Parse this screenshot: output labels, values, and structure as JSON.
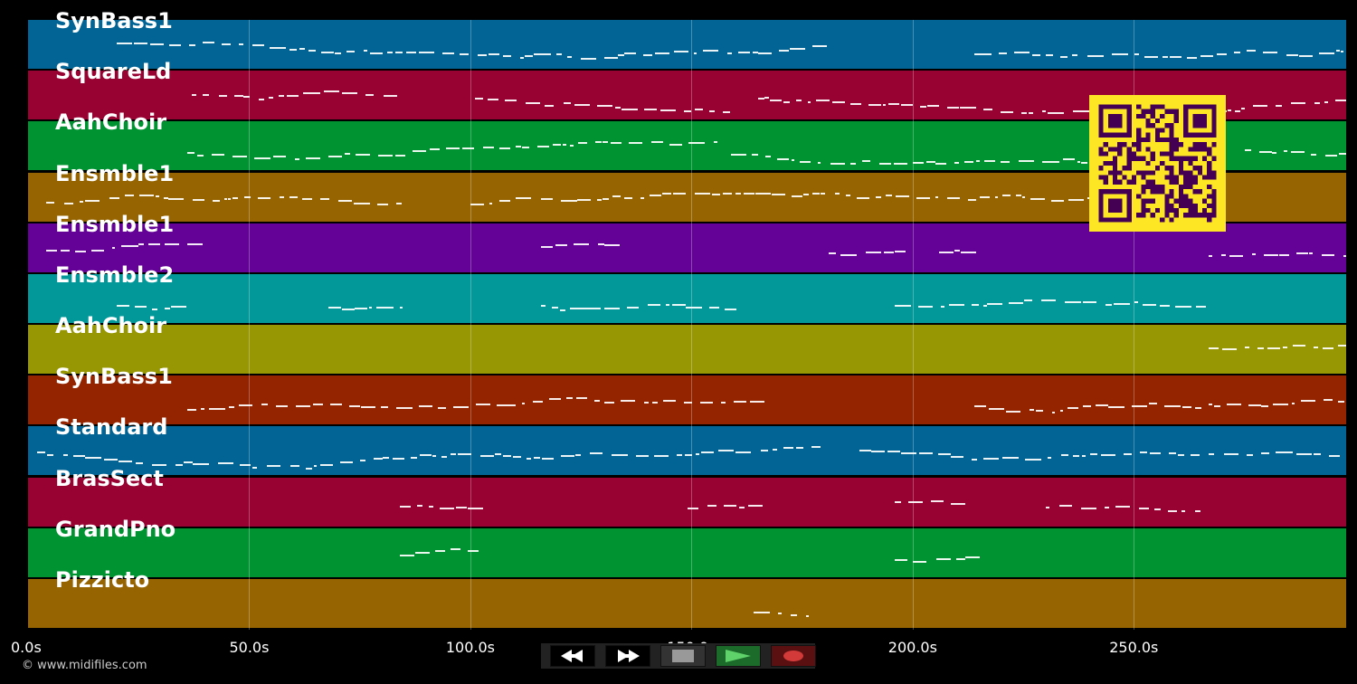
{
  "copyright": "© www.midifiles.com",
  "axis": {
    "min": 0,
    "max": 298,
    "unit": "s"
  },
  "ticks": [
    "0.0s",
    "50.0s",
    "100.0s",
    "150.0s",
    "200.0s",
    "250.0s"
  ],
  "tick_values": [
    0,
    50,
    100,
    150,
    200,
    250
  ],
  "tracks": [
    {
      "name": "SynBass1",
      "color": "#016495",
      "segments": [
        [
          20,
          180
        ],
        [
          214,
          298
        ]
      ]
    },
    {
      "name": "SquareLd",
      "color": "#980233",
      "segments": [
        [
          37,
          84
        ],
        [
          101,
          160
        ],
        [
          165,
          298
        ]
      ]
    },
    {
      "name": "AahChoir",
      "color": "#009332",
      "segments": [
        [
          36,
          84
        ],
        [
          87,
          156
        ],
        [
          159,
          255
        ],
        [
          275,
          298
        ]
      ]
    },
    {
      "name": "Ensmble1",
      "color": "#966400",
      "segments": [
        [
          4,
          84
        ],
        [
          100,
          250
        ]
      ]
    },
    {
      "name": "Ensmble1",
      "color": "#640197",
      "segments": [
        [
          4,
          36
        ],
        [
          116,
          132
        ],
        [
          181,
          196
        ],
        [
          206,
          214
        ],
        [
          267,
          298
        ]
      ]
    },
    {
      "name": "Ensmble2",
      "color": "#029798",
      "segments": [
        [
          20,
          36
        ],
        [
          68,
          84
        ],
        [
          116,
          160
        ],
        [
          196,
          265
        ]
      ]
    },
    {
      "name": "AahChoir",
      "color": "#969702",
      "segments": [
        [
          267,
          298
        ]
      ]
    },
    {
      "name": "SynBass1",
      "color": "#942400",
      "segments": [
        [
          36,
          164
        ],
        [
          214,
          265
        ],
        [
          267,
          298
        ]
      ]
    },
    {
      "name": "Standard",
      "color": "#016495",
      "segments": [
        [
          2,
          180
        ],
        [
          188,
          265
        ],
        [
          267,
          298
        ]
      ]
    },
    {
      "name": "BrasSect",
      "color": "#980233",
      "segments": [
        [
          84,
          100
        ],
        [
          149,
          164
        ],
        [
          196,
          210
        ],
        [
          230,
          265
        ]
      ]
    },
    {
      "name": "GrandPno",
      "color": "#009332",
      "segments": [
        [
          84,
          100
        ],
        [
          196,
          212
        ]
      ]
    },
    {
      "name": "Pizzicto",
      "color": "#966400",
      "segments": [
        [
          164,
          178
        ]
      ]
    }
  ],
  "transport": {
    "rewind": "rewind-icon",
    "forward": "fast-forward-icon",
    "stop": "stop-icon",
    "play": "play-icon",
    "record": "record-icon"
  },
  "colors": {
    "background": "#000000",
    "qr_fg": "#440154",
    "qr_bg": "#fde725"
  }
}
